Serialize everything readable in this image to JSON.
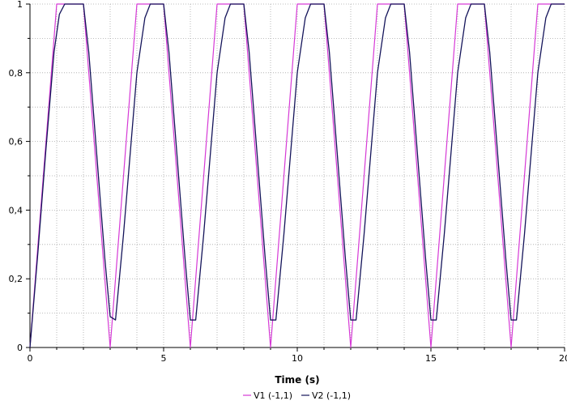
{
  "chart_data": {
    "type": "line",
    "xlabel": "Time (s)",
    "ylabel": "",
    "xlim": [
      0,
      20
    ],
    "ylim": [
      0,
      1
    ],
    "x_ticks": [
      0,
      5,
      10,
      15,
      20
    ],
    "x_tick_labels": [
      "0",
      "5",
      "10",
      "15",
      "20"
    ],
    "y_ticks": [
      0,
      0.2,
      0.4,
      0.6,
      0.8,
      1
    ],
    "y_tick_labels": [
      "0",
      "0,2",
      "0,4",
      "0,6",
      "0,8",
      "1"
    ],
    "grid": true,
    "legend_position": "bottom-center",
    "series": [
      {
        "name": "V1 (-1,1)",
        "color": "#d63ad6",
        "x": [
          0,
          1,
          2,
          3,
          4,
          5,
          6,
          7,
          8,
          9,
          10,
          11,
          12,
          13,
          14,
          15,
          16,
          17,
          18,
          19,
          20
        ],
        "y": [
          0,
          1,
          1,
          0,
          1,
          1,
          0,
          1,
          1,
          0,
          1,
          1,
          0,
          1,
          1,
          0,
          1,
          1,
          0,
          1,
          1
        ]
      },
      {
        "name": "V2 (-1,1)",
        "color": "#14145a",
        "x": [
          0,
          0.3,
          0.6,
          0.9,
          1.1,
          1.3,
          2.0,
          2.2,
          2.5,
          2.8,
          3.0,
          3.2,
          3.5,
          4.0,
          4.3,
          4.5,
          5.0,
          5.2,
          5.5,
          5.8,
          6.0,
          6.2,
          6.5,
          7.0,
          7.3,
          7.5,
          8.0,
          8.2,
          8.5,
          8.8,
          9.0,
          9.2,
          9.5,
          10.0,
          10.3,
          10.5,
          11.0,
          11.2,
          11.5,
          11.8,
          12.0,
          12.2,
          12.5,
          13.0,
          13.3,
          13.5,
          14.0,
          14.2,
          14.5,
          14.8,
          15.0,
          15.2,
          15.5,
          16.0,
          16.3,
          16.5,
          17.0,
          17.2,
          17.5,
          17.8,
          18.0,
          18.2,
          18.5,
          19.0,
          19.3,
          19.5,
          20.0
        ],
        "y": [
          0,
          0.28,
          0.58,
          0.86,
          0.97,
          1.0,
          1.0,
          0.86,
          0.56,
          0.26,
          0.09,
          0.08,
          0.33,
          0.8,
          0.96,
          1.0,
          1.0,
          0.86,
          0.56,
          0.26,
          0.08,
          0.08,
          0.33,
          0.8,
          0.96,
          1.0,
          1.0,
          0.86,
          0.56,
          0.26,
          0.08,
          0.08,
          0.33,
          0.8,
          0.96,
          1.0,
          1.0,
          0.86,
          0.56,
          0.26,
          0.08,
          0.08,
          0.33,
          0.8,
          0.96,
          1.0,
          1.0,
          0.86,
          0.56,
          0.26,
          0.08,
          0.08,
          0.33,
          0.8,
          0.96,
          1.0,
          1.0,
          0.86,
          0.56,
          0.26,
          0.08,
          0.08,
          0.33,
          0.8,
          0.96,
          1.0,
          1.0
        ]
      }
    ]
  }
}
